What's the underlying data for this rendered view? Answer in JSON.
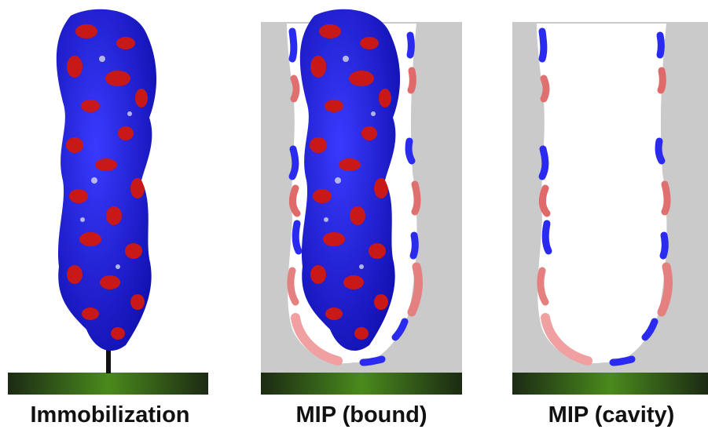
{
  "panels": [
    {
      "label": "Immobilization"
    },
    {
      "label": "MIP (bound)"
    },
    {
      "label": "MIP (cavity)"
    }
  ]
}
